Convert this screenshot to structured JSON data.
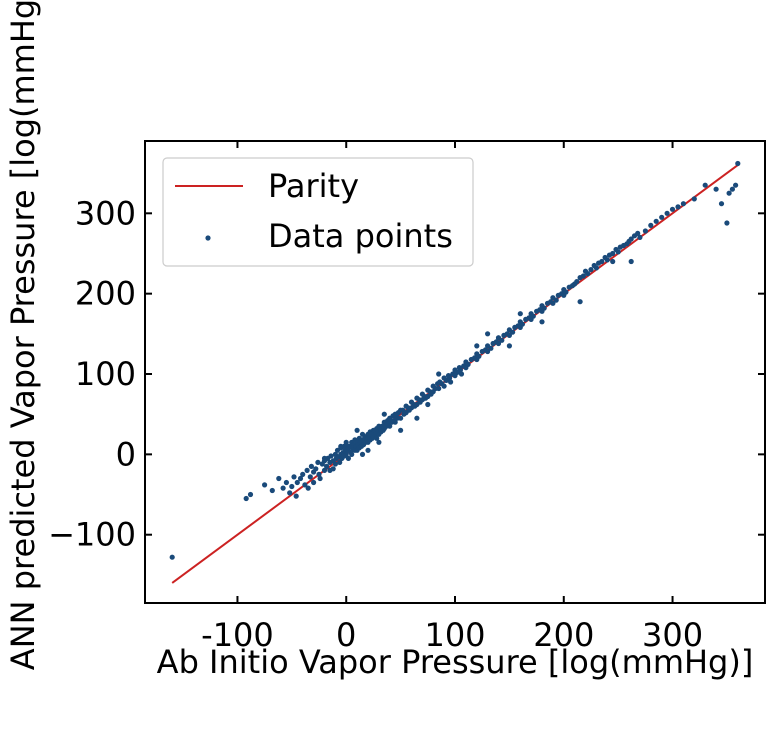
{
  "chart_data": {
    "type": "scatter",
    "title": "",
    "xlabel": "Ab Initio Vapor Pressure [log(mmHg)]",
    "ylabel": "ANN predicted Vapor Pressure [log(mmHg)]",
    "xlim": [
      -185,
      385
    ],
    "ylim": [
      -185,
      390
    ],
    "x_ticks": [
      -100,
      0,
      100,
      200,
      300
    ],
    "x_tick_labels": [
      "-100",
      "0",
      "100",
      "200",
      "300"
    ],
    "y_ticks": [
      -100,
      0,
      100,
      200,
      300
    ],
    "y_tick_labels": [
      "−100",
      "0",
      "100",
      "200",
      "300"
    ],
    "grid": false,
    "legend": {
      "position": "top-left"
    },
    "series": [
      {
        "name": "Parity",
        "kind": "line",
        "color": "#cc2222",
        "x": [
          -160,
          360
        ],
        "y": [
          -160,
          360
        ]
      },
      {
        "name": "Data points",
        "kind": "scatter",
        "color": "#1a4a7a",
        "x": [
          -160,
          -92,
          -88,
          -75,
          -68,
          -62,
          -58,
          -55,
          -52,
          -50,
          -48,
          -46,
          -45,
          -42,
          -40,
          -38,
          -36,
          -35,
          -33,
          -32,
          -30,
          -30,
          -28,
          -26,
          -25,
          -24,
          -22,
          -20,
          -20,
          -18,
          -17,
          -15,
          -15,
          -14,
          -12,
          -12,
          -10,
          -10,
          -9,
          -8,
          -7,
          -6,
          -5,
          -5,
          -4,
          -3,
          -2,
          -2,
          -1,
          0,
          0,
          1,
          2,
          2,
          3,
          4,
          5,
          5,
          6,
          7,
          8,
          8,
          9,
          10,
          10,
          11,
          12,
          12,
          13,
          14,
          15,
          15,
          16,
          17,
          18,
          18,
          19,
          20,
          20,
          21,
          22,
          22,
          23,
          24,
          25,
          25,
          26,
          27,
          28,
          28,
          29,
          30,
          30,
          31,
          32,
          33,
          34,
          35,
          35,
          36,
          37,
          38,
          39,
          40,
          40,
          41,
          42,
          43,
          44,
          45,
          45,
          46,
          47,
          48,
          50,
          50,
          52,
          53,
          55,
          55,
          57,
          58,
          60,
          60,
          62,
          63,
          65,
          65,
          67,
          68,
          70,
          70,
          72,
          73,
          75,
          75,
          77,
          78,
          80,
          80,
          82,
          84,
          85,
          86,
          88,
          90,
          90,
          92,
          94,
          95,
          96,
          98,
          100,
          100,
          102,
          104,
          105,
          106,
          108,
          110,
          110,
          112,
          115,
          118,
          120,
          120,
          122,
          125,
          128,
          130,
          130,
          133,
          135,
          138,
          140,
          140,
          143,
          145,
          148,
          150,
          150,
          153,
          155,
          158,
          160,
          160,
          162,
          165,
          168,
          170,
          170,
          172,
          175,
          178,
          180,
          180,
          182,
          185,
          188,
          190,
          190,
          193,
          195,
          198,
          200,
          200,
          202,
          205,
          208,
          210,
          212,
          215,
          218,
          220,
          222,
          225,
          228,
          230,
          232,
          235,
          238,
          240,
          242,
          245,
          248,
          250,
          252,
          255,
          258,
          260,
          262,
          265,
          268,
          270,
          275,
          280,
          285,
          290,
          295,
          300,
          305,
          310,
          320,
          330,
          340,
          345,
          350,
          352,
          355,
          358,
          360,
          75,
          85,
          140,
          150,
          130,
          215,
          65,
          20,
          30,
          -20,
          10,
          180,
          245,
          262,
          120,
          35,
          50,
          160,
          0,
          -5,
          15
        ],
        "y": [
          -128,
          -55,
          -50,
          -38,
          -45,
          -30,
          -42,
          -35,
          -48,
          -40,
          -28,
          -52,
          -35,
          -30,
          -25,
          -38,
          -20,
          -42,
          -28,
          -15,
          -22,
          -35,
          -18,
          -10,
          -25,
          -30,
          -12,
          -8,
          -20,
          -15,
          -5,
          -10,
          -20,
          -2,
          -8,
          -18,
          0,
          -12,
          -5,
          5,
          -3,
          -10,
          8,
          0,
          -5,
          2,
          10,
          -2,
          5,
          0,
          12,
          5,
          -5,
          8,
          10,
          3,
          15,
          0,
          8,
          12,
          5,
          18,
          10,
          15,
          5,
          12,
          20,
          8,
          15,
          10,
          18,
          25,
          12,
          20,
          15,
          22,
          18,
          25,
          15,
          20,
          28,
          18,
          25,
          20,
          30,
          22,
          28,
          25,
          32,
          20,
          30,
          35,
          25,
          32,
          28,
          35,
          30,
          40,
          32,
          38,
          35,
          42,
          38,
          45,
          35,
          42,
          40,
          48,
          42,
          50,
          40,
          48,
          45,
          52,
          55,
          45,
          55,
          50,
          60,
          52,
          58,
          55,
          65,
          58,
          62,
          60,
          70,
          62,
          68,
          65,
          75,
          68,
          72,
          70,
          80,
          72,
          78,
          75,
          85,
          78,
          82,
          88,
          82,
          90,
          88,
          95,
          85,
          92,
          98,
          95,
          90,
          100,
          105,
          98,
          102,
          108,
          105,
          100,
          110,
          115,
          108,
          112,
          118,
          120,
          125,
          118,
          122,
          128,
          130,
          135,
          128,
          132,
          138,
          140,
          145,
          138,
          142,
          148,
          150,
          155,
          148,
          152,
          158,
          160,
          165,
          158,
          162,
          168,
          170,
          175,
          168,
          172,
          178,
          180,
          185,
          178,
          182,
          188,
          190,
          195,
          188,
          192,
          198,
          200,
          205,
          198,
          202,
          208,
          210,
          212,
          215,
          220,
          222,
          228,
          225,
          230,
          235,
          232,
          238,
          240,
          245,
          242,
          248,
          250,
          255,
          252,
          258,
          260,
          262,
          265,
          268,
          272,
          275,
          270,
          278,
          285,
          290,
          295,
          300,
          305,
          308,
          312,
          318,
          335,
          330,
          312,
          288,
          325,
          330,
          335,
          362,
          62,
          100,
          145,
          135,
          150,
          190,
          45,
          5,
          15,
          -5,
          30,
          165,
          240,
          240,
          135,
          50,
          30,
          175,
          15,
          10,
          0
        ]
      }
    ]
  }
}
